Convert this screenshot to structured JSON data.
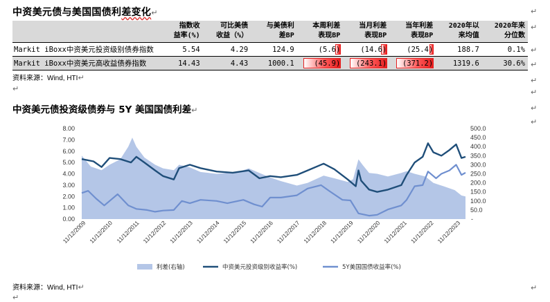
{
  "section1": {
    "title_pre": "中资美元债与美国国债利",
    "title_u": "差变化",
    "title_mark": "↵",
    "headers": [
      "指数收\n益率(%)",
      "可比美债\n收益（%）",
      "与美债利\n差BP",
      "本周利差\n表现BP",
      "当月利差\n表现BP",
      "当年利差\n表现BP",
      "2020年以\n来均值",
      "2020年来\n分位数"
    ],
    "rows": [
      {
        "name": "Markit iBoxx中资美元投资级别债券指数",
        "yield": "5.54",
        "ust": "4.29",
        "spread": "124.9",
        "week": "(5.6)",
        "month": "(14.6)",
        "ytd": "(25.4)",
        "avg": "188.7",
        "pct": "0.1%"
      },
      {
        "name": "Markit iBoxx中资美元高收益债券指数",
        "yield": "14.43",
        "ust": "4.43",
        "spread": "1000.1",
        "week": "(45.9)",
        "month": "(243.1)",
        "ytd": "(371.2)",
        "avg": "1319.6",
        "pct": "30.6%"
      }
    ],
    "bars": {
      "week": [
        0.12,
        0.92
      ],
      "month": [
        0.12,
        0.92
      ],
      "ytd": [
        0.07,
        0.92
      ]
    },
    "source": "资料来源：Wind, HTI"
  },
  "section2": {
    "title": "中资美元债投资级债券与 5Y 美国国债利差",
    "title_mark": "↵",
    "source": "资料来源：Wind, HTI"
  },
  "marks": {
    "return": "↵",
    "left_return": "↵"
  },
  "chart_data": {
    "type": "area",
    "x_ticks": [
      "11/12/2009",
      "11/12/2010",
      "11/12/2011",
      "11/12/2012",
      "11/12/2013",
      "11/12/2014",
      "11/12/2015",
      "11/12/2016",
      "11/12/2017",
      "11/12/2018",
      "11/12/2019",
      "11/12/2020",
      "11/12/2021",
      "11/12/2022",
      "11/12/2023"
    ],
    "yleft_ticks": [
      "0.00",
      "1.00",
      "2.00",
      "3.00",
      "4.00",
      "5.00",
      "6.00",
      "7.00",
      "8.00"
    ],
    "yright_ticks": [
      "-",
      "50.0",
      "100.0",
      "150.0",
      "200.0",
      "250.0",
      "300.0",
      "350.0",
      "400.0",
      "450.0",
      "500.0"
    ],
    "yleft_range": [
      0,
      8
    ],
    "yright_range": [
      0,
      500
    ],
    "x_range": [
      2009.86,
      2024.2
    ],
    "series": [
      {
        "name": "利差(右轴)",
        "kind": "area",
        "axis": "right",
        "color": "#b4c6e7",
        "points": [
          [
            2009.86,
            350
          ],
          [
            2010.2,
            290
          ],
          [
            2010.6,
            270
          ],
          [
            2010.9,
            300
          ],
          [
            2011.3,
            330
          ],
          [
            2011.6,
            400
          ],
          [
            2011.75,
            450
          ],
          [
            2011.9,
            400
          ],
          [
            2012.2,
            340
          ],
          [
            2012.6,
            300
          ],
          [
            2012.9,
            280
          ],
          [
            2013.3,
            270
          ],
          [
            2013.5,
            300
          ],
          [
            2013.9,
            285
          ],
          [
            2014.3,
            260
          ],
          [
            2014.9,
            250
          ],
          [
            2015.3,
            255
          ],
          [
            2015.8,
            265
          ],
          [
            2016.1,
            280
          ],
          [
            2016.5,
            255
          ],
          [
            2016.9,
            230
          ],
          [
            2017.3,
            210
          ],
          [
            2017.9,
            185
          ],
          [
            2018.3,
            200
          ],
          [
            2018.9,
            240
          ],
          [
            2019.3,
            225
          ],
          [
            2019.8,
            205
          ],
          [
            2020.0,
            220
          ],
          [
            2020.2,
            330
          ],
          [
            2020.35,
            300
          ],
          [
            2020.6,
            255
          ],
          [
            2020.9,
            250
          ],
          [
            2021.3,
            235
          ],
          [
            2021.8,
            255
          ],
          [
            2022.0,
            265
          ],
          [
            2022.3,
            250
          ],
          [
            2022.7,
            235
          ],
          [
            2023.0,
            200
          ],
          [
            2023.4,
            180
          ],
          [
            2023.8,
            160
          ],
          [
            2024.05,
            130
          ],
          [
            2024.2,
            125
          ]
        ]
      },
      {
        "name": "中资美元投资级别收益率(%)",
        "kind": "line",
        "axis": "left",
        "color": "#1f4e79",
        "points": [
          [
            2009.86,
            5.3
          ],
          [
            2010.3,
            5.1
          ],
          [
            2010.6,
            4.6
          ],
          [
            2010.9,
            5.4
          ],
          [
            2011.3,
            5.3
          ],
          [
            2011.7,
            5.0
          ],
          [
            2011.9,
            5.5
          ],
          [
            2012.2,
            5.0
          ],
          [
            2012.6,
            4.3
          ],
          [
            2012.9,
            3.8
          ],
          [
            2013.3,
            3.5
          ],
          [
            2013.5,
            4.5
          ],
          [
            2013.9,
            4.8
          ],
          [
            2014.3,
            4.5
          ],
          [
            2014.9,
            4.2
          ],
          [
            2015.5,
            4.1
          ],
          [
            2016.1,
            4.3
          ],
          [
            2016.5,
            3.6
          ],
          [
            2016.9,
            3.8
          ],
          [
            2017.3,
            3.7
          ],
          [
            2017.9,
            3.9
          ],
          [
            2018.3,
            4.3
          ],
          [
            2018.9,
            4.9
          ],
          [
            2019.3,
            4.4
          ],
          [
            2019.8,
            3.5
          ],
          [
            2020.1,
            2.9
          ],
          [
            2020.2,
            4.3
          ],
          [
            2020.3,
            3.4
          ],
          [
            2020.6,
            2.6
          ],
          [
            2020.9,
            2.4
          ],
          [
            2021.3,
            2.6
          ],
          [
            2021.8,
            3.0
          ],
          [
            2022.0,
            3.9
          ],
          [
            2022.3,
            5.0
          ],
          [
            2022.6,
            5.5
          ],
          [
            2022.8,
            6.7
          ],
          [
            2023.0,
            5.9
          ],
          [
            2023.3,
            5.6
          ],
          [
            2023.6,
            6.1
          ],
          [
            2023.85,
            6.6
          ],
          [
            2024.05,
            5.4
          ],
          [
            2024.2,
            5.5
          ]
        ]
      },
      {
        "name": "5Y美国国债收益率(%)",
        "kind": "line",
        "axis": "left",
        "color": "#6f8fcf",
        "points": [
          [
            2009.86,
            2.3
          ],
          [
            2010.1,
            2.5
          ],
          [
            2010.4,
            1.8
          ],
          [
            2010.7,
            1.2
          ],
          [
            2010.9,
            1.6
          ],
          [
            2011.2,
            2.2
          ],
          [
            2011.6,
            1.2
          ],
          [
            2011.9,
            0.9
          ],
          [
            2012.3,
            0.8
          ],
          [
            2012.6,
            0.65
          ],
          [
            2012.9,
            0.75
          ],
          [
            2013.3,
            0.8
          ],
          [
            2013.6,
            1.6
          ],
          [
            2013.9,
            1.4
          ],
          [
            2014.3,
            1.7
          ],
          [
            2014.9,
            1.6
          ],
          [
            2015.3,
            1.4
          ],
          [
            2015.9,
            1.7
          ],
          [
            2016.3,
            1.3
          ],
          [
            2016.6,
            1.1
          ],
          [
            2016.9,
            1.9
          ],
          [
            2017.3,
            1.9
          ],
          [
            2017.9,
            2.1
          ],
          [
            2018.3,
            2.7
          ],
          [
            2018.8,
            3.0
          ],
          [
            2019.1,
            2.5
          ],
          [
            2019.6,
            1.7
          ],
          [
            2019.9,
            1.65
          ],
          [
            2020.2,
            0.5
          ],
          [
            2020.6,
            0.3
          ],
          [
            2020.9,
            0.38
          ],
          [
            2021.3,
            0.85
          ],
          [
            2021.8,
            1.2
          ],
          [
            2022.0,
            1.7
          ],
          [
            2022.3,
            2.9
          ],
          [
            2022.6,
            3.0
          ],
          [
            2022.8,
            4.2
          ],
          [
            2023.1,
            3.6
          ],
          [
            2023.3,
            4.0
          ],
          [
            2023.6,
            4.3
          ],
          [
            2023.85,
            4.8
          ],
          [
            2024.05,
            3.9
          ],
          [
            2024.2,
            4.1
          ]
        ]
      }
    ]
  }
}
